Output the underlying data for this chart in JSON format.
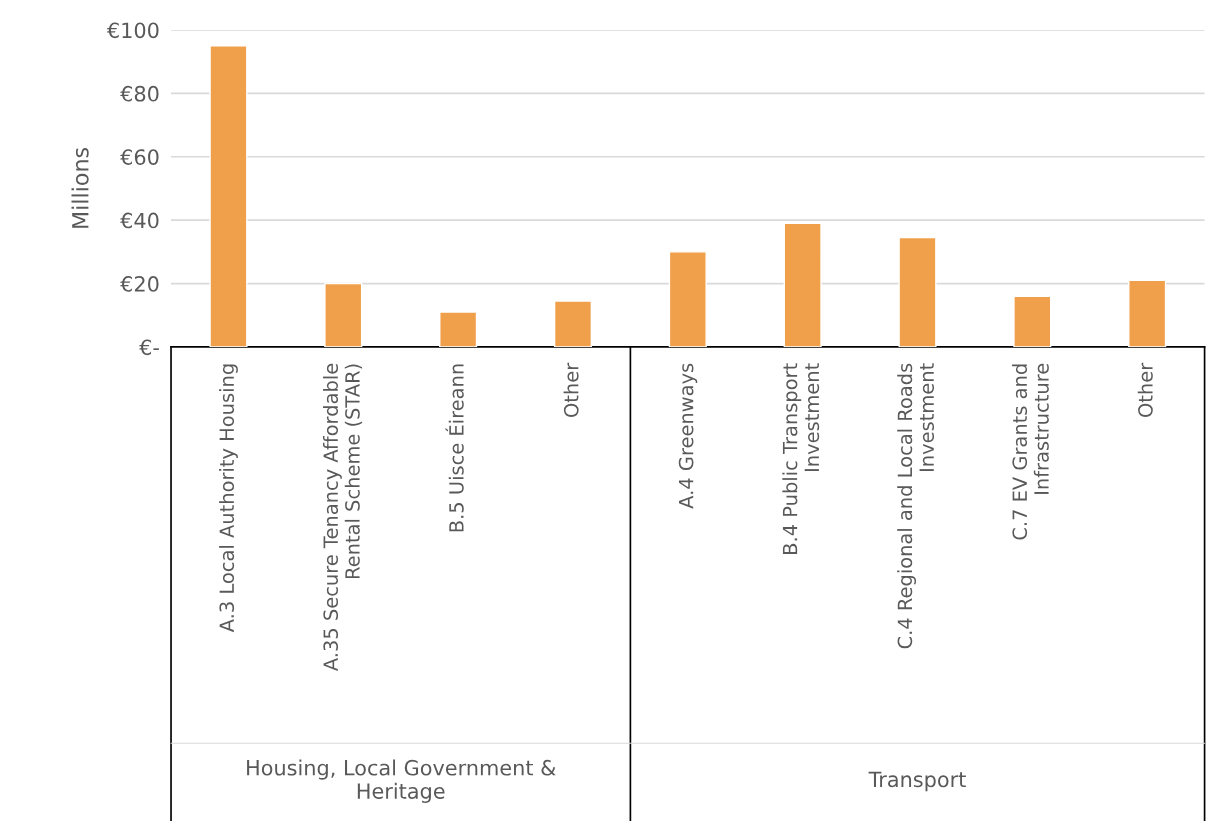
{
  "chart_data": {
    "type": "bar",
    "ylabel": "Millions",
    "categories": [
      "A.3 Local Authority Housing",
      "A.35 Secure Tenancy Affordable Rental Scheme (STAR)",
      "B.5 Uisce Éireann",
      "Other",
      "A.4 Greenways",
      "B.4 Public Transport Investment",
      "C.4 Regional and Local Roads Investment",
      "C.7 EV Grants and Infrastructure",
      "Other"
    ],
    "values": [
      95,
      20,
      11,
      14.5,
      30,
      39,
      34.5,
      16,
      21
    ],
    "color": "#f0a04b",
    "ylim": [
      0,
      100
    ],
    "yticks": [
      {
        "value": 0,
        "label": "€-"
      },
      {
        "value": 20,
        "label": "€20"
      },
      {
        "value": 40,
        "label": "€40"
      },
      {
        "value": 60,
        "label": "€60"
      },
      {
        "value": 80,
        "label": "€80"
      },
      {
        "value": 100,
        "label": "€100"
      }
    ],
    "grid": "y",
    "annotations": [
      "Housing, Local Government & Heritage",
      "Transport"
    ]
  }
}
